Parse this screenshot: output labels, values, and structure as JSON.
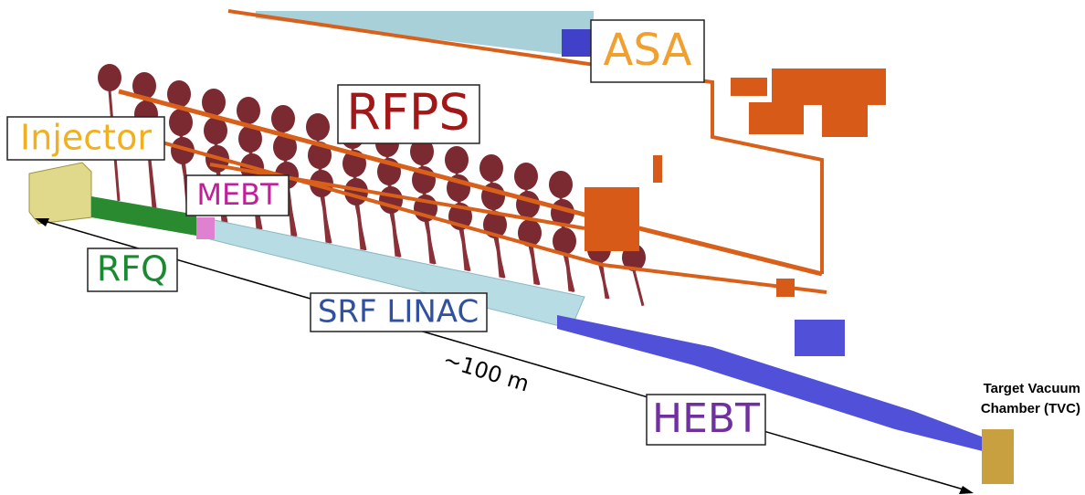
{
  "labels": {
    "asa": "ASA",
    "rfps": "RFPS",
    "injector": "Injector",
    "mebt": "MEBT",
    "rfq": "RFQ",
    "srf_linac": "SRF LINAC",
    "length": "~100 m",
    "hebt": "HEBT",
    "tvc": [
      "Target Vacuum",
      "Chamber (TVC)"
    ]
  }
}
